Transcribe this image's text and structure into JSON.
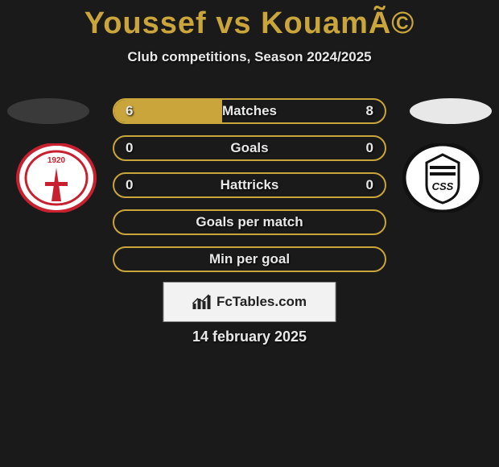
{
  "title": {
    "text": "Youssef vs KouamÃ©",
    "color": "#c9a53b",
    "fontsize": 38,
    "fontweight": 900
  },
  "subtitle": {
    "text": "Club competitions, Season 2024/2025",
    "color": "#e8e8e8",
    "fontsize": 17
  },
  "background_color": "#1a1a1a",
  "players": {
    "left": {
      "ellipse_color": "#3a3a3a"
    },
    "right": {
      "ellipse_color": "#e8e8e8"
    }
  },
  "clubs": {
    "left": {
      "name": "Club Africain",
      "badge_bg": "#ffffff",
      "badge_stripe": "#c8202f",
      "badge_text": "1920"
    },
    "right": {
      "name": "CSS",
      "badge_bg": "#ffffff",
      "badge_stroke": "#111111",
      "badge_text": "CSS"
    }
  },
  "stat_rows": [
    {
      "label": "Matches",
      "left": "6",
      "right": "8",
      "border_color": "#c9a53b",
      "fill_left_pct": 40,
      "fill_color": "#c9a53b"
    },
    {
      "label": "Goals",
      "left": "0",
      "right": "0",
      "border_color": "#c9a53b",
      "fill_left_pct": 0,
      "fill_color": "#c9a53b"
    },
    {
      "label": "Hattricks",
      "left": "0",
      "right": "0",
      "border_color": "#c9a53b",
      "fill_left_pct": 0,
      "fill_color": "#c9a53b"
    },
    {
      "label": "Goals per match",
      "left": "",
      "right": "",
      "border_color": "#c9a53b",
      "fill_left_pct": 0,
      "fill_color": "#c9a53b"
    },
    {
      "label": "Min per goal",
      "left": "",
      "right": "",
      "border_color": "#c9a53b",
      "fill_left_pct": 0,
      "fill_color": "#c9a53b"
    }
  ],
  "row_style": {
    "height": 32,
    "border_radius": 16,
    "border_width": 2,
    "gap": 14,
    "label_color": "#e8e8e8",
    "label_fontsize": 17,
    "value_color": "#e8e8e8",
    "value_fontsize": 17
  },
  "branding": {
    "text": "FcTables.com",
    "bg": "#f2f2f2",
    "color": "#222222",
    "icon_color": "#222222"
  },
  "date": {
    "text": "14 february 2025",
    "color": "#e8e8e8",
    "fontsize": 18
  }
}
